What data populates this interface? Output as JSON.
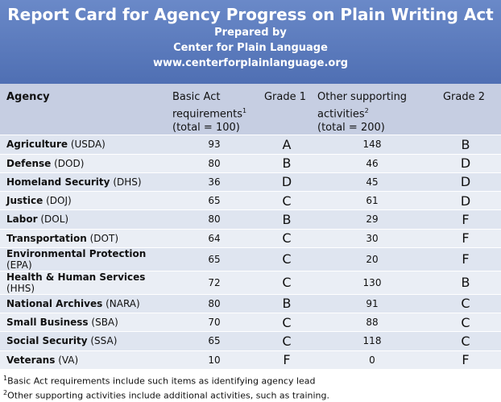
{
  "header": {
    "title": "Report Card for Agency Progress on Plain Writing Act",
    "lines": [
      "Prepared by",
      "Center for Plain Language",
      "www.centerforplainlanguage.org"
    ]
  },
  "table": {
    "columns": [
      {
        "text": "Agency"
      },
      {
        "text": "Basic Act requirements",
        "sup": "1",
        "note": "(total = 100)"
      },
      {
        "text": "Grade 1"
      },
      {
        "text": "Other supporting activities",
        "sup": "2",
        "note": "(total = 200)"
      },
      {
        "text": "Grade 2"
      }
    ],
    "rows": [
      {
        "agency": "Agriculture",
        "abbr": "(USDA)",
        "basic": 93,
        "grade1": "A",
        "other": 148,
        "grade2": "B"
      },
      {
        "agency": "Defense",
        "abbr": "(DOD)",
        "basic": 80,
        "grade1": "B",
        "other": 46,
        "grade2": "D"
      },
      {
        "agency": "Homeland Security",
        "abbr": "(DHS)",
        "basic": 36,
        "grade1": "D",
        "other": 45,
        "grade2": "D"
      },
      {
        "agency": "Justice",
        "abbr": "(DOJ)",
        "basic": 65,
        "grade1": "C",
        "other": 61,
        "grade2": "D"
      },
      {
        "agency": "Labor",
        "abbr": "(DOL)",
        "basic": 80,
        "grade1": "B",
        "other": 29,
        "grade2": "F"
      },
      {
        "agency": "Transportation",
        "abbr": "(DOT)",
        "basic": 64,
        "grade1": "C",
        "other": 30,
        "grade2": "F"
      },
      {
        "agency": "Environmental Protection",
        "abbr": "(EPA)",
        "basic": 65,
        "grade1": "C",
        "other": 20,
        "grade2": "F"
      },
      {
        "agency": "Health & Human Services",
        "abbr": "(HHS)",
        "basic": 72,
        "grade1": "C",
        "other": 130,
        "grade2": "B"
      },
      {
        "agency": "National Archives",
        "abbr": "(NARA)",
        "basic": 80,
        "grade1": "B",
        "other": 91,
        "grade2": "C"
      },
      {
        "agency": "Small Business",
        "abbr": "(SBA)",
        "basic": 70,
        "grade1": "C",
        "other": 88,
        "grade2": "C"
      },
      {
        "agency": "Social Security",
        "abbr": "(SSA)",
        "basic": 65,
        "grade1": "C",
        "other": 118,
        "grade2": "C"
      },
      {
        "agency": "Veterans",
        "abbr": "(VA)",
        "basic": 10,
        "grade1": "F",
        "other": 0,
        "grade2": "F"
      }
    ]
  },
  "footnotes": [
    {
      "mark": "1",
      "text": "Basic Act requirements include such items as identifying agency lead"
    },
    {
      "mark": "2",
      "text": "Other supporting activities include additional activities, such as training."
    }
  ]
}
